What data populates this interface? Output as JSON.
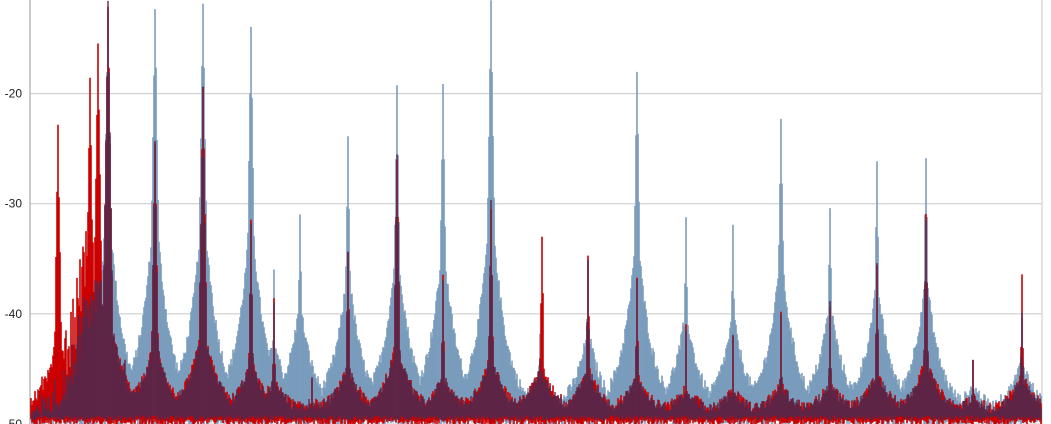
{
  "chart_data": {
    "type": "line",
    "title": "",
    "xlabel": "",
    "ylabel": "",
    "ylim": [
      -50,
      -11.5
    ],
    "grid": true,
    "legend": "none",
    "y_ticks": [
      -20,
      -30,
      -40,
      -50
    ],
    "y_tick_labels": [
      "-20",
      "-30",
      "-40",
      "-50"
    ],
    "noise_floor": -49,
    "colors": {
      "series_blue": "#7b9cbd",
      "series_red": "#cc0000",
      "overlap": "#5e2547",
      "grid": "#c8c8c8",
      "axis": "#999999"
    },
    "series": [
      {
        "color": "series_blue",
        "peaks": [
          {
            "x": 108,
            "y": -12
          },
          {
            "x": 155,
            "y": -12
          },
          {
            "x": 203,
            "y": -12
          },
          {
            "x": 251,
            "y": -14.5
          },
          {
            "x": 274,
            "y": -36.5
          },
          {
            "x": 300,
            "y": -30.5
          },
          {
            "x": 348,
            "y": -24
          },
          {
            "x": 397,
            "y": -19.7
          },
          {
            "x": 443,
            "y": -19.7
          },
          {
            "x": 491,
            "y": -12
          },
          {
            "x": 540,
            "y": -41.5
          },
          {
            "x": 588,
            "y": -35
          },
          {
            "x": 637,
            "y": -17.8
          },
          {
            "x": 686,
            "y": -31.8
          },
          {
            "x": 733,
            "y": -32.3
          },
          {
            "x": 781,
            "y": -21.9
          },
          {
            "x": 830,
            "y": -30
          },
          {
            "x": 877,
            "y": -26.7
          },
          {
            "x": 926,
            "y": -25.5
          },
          {
            "x": 973,
            "y": -44.5
          },
          {
            "x": 1022,
            "y": -40
          }
        ]
      },
      {
        "color": "series_red",
        "peaks": [
          {
            "x": 58,
            "y": -23
          },
          {
            "x": 90,
            "y": -19
          },
          {
            "x": 98,
            "y": -15.5
          },
          {
            "x": 108,
            "y": -12
          },
          {
            "x": 155,
            "y": -24
          },
          {
            "x": 203,
            "y": -19.5
          },
          {
            "x": 251,
            "y": -32
          },
          {
            "x": 274,
            "y": -38.5
          },
          {
            "x": 312,
            "y": -45.5
          },
          {
            "x": 348,
            "y": -34
          },
          {
            "x": 397,
            "y": -25.5
          },
          {
            "x": 443,
            "y": -37
          },
          {
            "x": 491,
            "y": -30
          },
          {
            "x": 542,
            "y": -32.6
          },
          {
            "x": 588,
            "y": -34.5
          },
          {
            "x": 637,
            "y": -37
          },
          {
            "x": 686,
            "y": -41.3
          },
          {
            "x": 733,
            "y": -41.8
          },
          {
            "x": 781,
            "y": -40
          },
          {
            "x": 830,
            "y": -39.2
          },
          {
            "x": 877,
            "y": -35.3
          },
          {
            "x": 926,
            "y": -31.5
          },
          {
            "x": 973,
            "y": -44.3
          },
          {
            "x": 1022,
            "y": -36.9
          }
        ]
      }
    ]
  }
}
